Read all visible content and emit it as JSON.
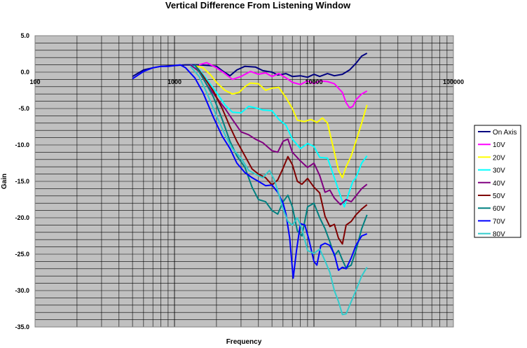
{
  "chart_data": {
    "type": "line",
    "title": "Vertical Difference From Listening Window",
    "xlabel": "Frequency",
    "ylabel": "Gain",
    "x_scale": "log",
    "xlim": [
      100,
      100000
    ],
    "ylim": [
      -35,
      5
    ],
    "x_ticks": [
      "100",
      "1000",
      "10000",
      "100000"
    ],
    "y_ticks": [
      "5.0",
      "0.0",
      "-5.0",
      "-10.0",
      "-15.0",
      "-20.0",
      "-25.0",
      "-30.0",
      "-35.0"
    ],
    "grid": true,
    "plot_background": "#C0C0C0",
    "legend_position": "right",
    "series": [
      {
        "name": "On Axis",
        "color": "#000080",
        "points": [
          [
            500,
            -0.6
          ],
          [
            600,
            0.3
          ],
          [
            700,
            0.6
          ],
          [
            800,
            0.8
          ],
          [
            1000,
            0.9
          ],
          [
            1200,
            1.0
          ],
          [
            1500,
            1.0
          ],
          [
            1800,
            0.9
          ],
          [
            2000,
            0.8
          ],
          [
            2200,
            0.2
          ],
          [
            2500,
            -0.5
          ],
          [
            2800,
            0.3
          ],
          [
            3200,
            0.8
          ],
          [
            3800,
            0.7
          ],
          [
            4300,
            0.2
          ],
          [
            5000,
            0.0
          ],
          [
            5500,
            -0.4
          ],
          [
            6300,
            -0.2
          ],
          [
            7000,
            -0.6
          ],
          [
            8000,
            -0.5
          ],
          [
            9000,
            -0.7
          ],
          [
            10000,
            -0.3
          ],
          [
            11000,
            -0.6
          ],
          [
            12500,
            -0.2
          ],
          [
            14000,
            -0.5
          ],
          [
            16000,
            -0.3
          ],
          [
            18000,
            0.3
          ],
          [
            20000,
            1.2
          ],
          [
            22000,
            2.2
          ],
          [
            24000,
            2.6
          ]
        ]
      },
      {
        "name": "10V",
        "color": "#FF00FF",
        "points": [
          [
            1500,
            1.0
          ],
          [
            1700,
            1.3
          ],
          [
            2000,
            0.6
          ],
          [
            2300,
            -0.2
          ],
          [
            2600,
            -1.0
          ],
          [
            3000,
            -0.6
          ],
          [
            3500,
            0.1
          ],
          [
            4000,
            -0.3
          ],
          [
            4500,
            -0.1
          ],
          [
            5000,
            -0.6
          ],
          [
            5600,
            -0.2
          ],
          [
            6300,
            -0.8
          ],
          [
            7000,
            -1.4
          ],
          [
            8000,
            -1.7
          ],
          [
            9000,
            -1.2
          ],
          [
            10000,
            -1.6
          ],
          [
            11000,
            -1.2
          ],
          [
            12500,
            -1.3
          ],
          [
            14000,
            -1.6
          ],
          [
            16000,
            -2.8
          ],
          [
            17000,
            -4.2
          ],
          [
            18000,
            -4.9
          ],
          [
            19000,
            -4.7
          ],
          [
            20000,
            -3.8
          ],
          [
            22000,
            -3.0
          ],
          [
            24000,
            -2.6
          ]
        ]
      },
      {
        "name": "20V",
        "color": "#FFFF00",
        "points": [
          [
            1400,
            0.9
          ],
          [
            1600,
            0.6
          ],
          [
            1800,
            -0.3
          ],
          [
            2000,
            -1.4
          ],
          [
            2300,
            -2.5
          ],
          [
            2600,
            -3.0
          ],
          [
            2900,
            -2.8
          ],
          [
            3200,
            -2.0
          ],
          [
            3500,
            -1.5
          ],
          [
            4000,
            -1.6
          ],
          [
            4500,
            -2.5
          ],
          [
            5000,
            -2.2
          ],
          [
            5600,
            -2.1
          ],
          [
            6300,
            -3.5
          ],
          [
            7000,
            -5.0
          ],
          [
            7600,
            -6.6
          ],
          [
            8500,
            -6.8
          ],
          [
            9500,
            -6.5
          ],
          [
            10500,
            -6.9
          ],
          [
            11500,
            -6.3
          ],
          [
            12500,
            -7.0
          ],
          [
            14000,
            -11.0
          ],
          [
            15000,
            -13.5
          ],
          [
            16000,
            -14.5
          ],
          [
            17000,
            -13.0
          ],
          [
            18500,
            -11.5
          ],
          [
            20000,
            -9.5
          ],
          [
            22000,
            -7.0
          ],
          [
            24000,
            -4.5
          ]
        ]
      },
      {
        "name": "30V",
        "color": "#00FFFF",
        "points": [
          [
            1300,
            1.0
          ],
          [
            1500,
            0.4
          ],
          [
            1700,
            -1.0
          ],
          [
            2000,
            -2.8
          ],
          [
            2300,
            -4.5
          ],
          [
            2600,
            -5.5
          ],
          [
            3000,
            -5.6
          ],
          [
            3400,
            -4.7
          ],
          [
            3800,
            -4.9
          ],
          [
            4300,
            -5.2
          ],
          [
            5000,
            -5.3
          ],
          [
            5600,
            -6.5
          ],
          [
            6300,
            -7.3
          ],
          [
            7000,
            -9.2
          ],
          [
            8000,
            -10.5
          ],
          [
            9000,
            -9.8
          ],
          [
            10000,
            -10.2
          ],
          [
            11000,
            -11.7
          ],
          [
            12500,
            -11.8
          ],
          [
            14000,
            -14.5
          ],
          [
            15500,
            -17.0
          ],
          [
            16500,
            -18.5
          ],
          [
            17500,
            -17.0
          ],
          [
            19000,
            -15.0
          ],
          [
            20000,
            -14.5
          ],
          [
            22000,
            -12.5
          ],
          [
            24000,
            -11.5
          ]
        ]
      },
      {
        "name": "40V",
        "color": "#800080",
        "points": [
          [
            1300,
            1.0
          ],
          [
            1500,
            0.1
          ],
          [
            1700,
            -1.7
          ],
          [
            2000,
            -3.5
          ],
          [
            2300,
            -5.0
          ],
          [
            2600,
            -6.5
          ],
          [
            3000,
            -8.2
          ],
          [
            3400,
            -8.6
          ],
          [
            3800,
            -9.2
          ],
          [
            4300,
            -9.7
          ],
          [
            5000,
            -10.8
          ],
          [
            5500,
            -11.0
          ],
          [
            6000,
            -9.5
          ],
          [
            6500,
            -9.2
          ],
          [
            7000,
            -11.0
          ],
          [
            8000,
            -12.2
          ],
          [
            9000,
            -13.1
          ],
          [
            10000,
            -12.5
          ],
          [
            11000,
            -14.2
          ],
          [
            12000,
            -16.5
          ],
          [
            13000,
            -16.2
          ],
          [
            14000,
            -17.3
          ],
          [
            15500,
            -18.2
          ],
          [
            17000,
            -17.5
          ],
          [
            18500,
            -17.8
          ],
          [
            20000,
            -17.0
          ],
          [
            22000,
            -16.0
          ],
          [
            24000,
            -15.4
          ]
        ]
      },
      {
        "name": "50V",
        "color": "#800000",
        "points": [
          [
            1400,
            1.0
          ],
          [
            1600,
            -0.5
          ],
          [
            1900,
            -2.6
          ],
          [
            2200,
            -5.0
          ],
          [
            2500,
            -7.5
          ],
          [
            2800,
            -9.5
          ],
          [
            3200,
            -11.5
          ],
          [
            3600,
            -13.3
          ],
          [
            4000,
            -14.0
          ],
          [
            4500,
            -14.5
          ],
          [
            5000,
            -15.5
          ],
          [
            5500,
            -14.8
          ],
          [
            6000,
            -13.2
          ],
          [
            6500,
            -11.6
          ],
          [
            7000,
            -12.7
          ],
          [
            7600,
            -15.0
          ],
          [
            8200,
            -15.4
          ],
          [
            9000,
            -14.6
          ],
          [
            10000,
            -15.8
          ],
          [
            11000,
            -16.6
          ],
          [
            12000,
            -19.8
          ],
          [
            13000,
            -21.2
          ],
          [
            14000,
            -20.9
          ],
          [
            15000,
            -22.8
          ],
          [
            16000,
            -23.6
          ],
          [
            17000,
            -21.0
          ],
          [
            18500,
            -20.5
          ],
          [
            20000,
            -19.6
          ],
          [
            22000,
            -18.8
          ],
          [
            24000,
            -18.2
          ]
        ]
      },
      {
        "name": "60V",
        "color": "#008080",
        "points": [
          [
            1400,
            1.0
          ],
          [
            1600,
            -0.8
          ],
          [
            1900,
            -3.4
          ],
          [
            2200,
            -6.5
          ],
          [
            2500,
            -9.5
          ],
          [
            2800,
            -11.5
          ],
          [
            3200,
            -13.1
          ],
          [
            3600,
            -15.8
          ],
          [
            4000,
            -17.5
          ],
          [
            4500,
            -17.8
          ],
          [
            5000,
            -19.0
          ],
          [
            5500,
            -19.5
          ],
          [
            6000,
            -17.8
          ],
          [
            6500,
            -16.9
          ],
          [
            7000,
            -18.5
          ],
          [
            7600,
            -21.8
          ],
          [
            8200,
            -22.5
          ],
          [
            9000,
            -18.5
          ],
          [
            10000,
            -18.0
          ],
          [
            11000,
            -20.0
          ],
          [
            12000,
            -21.5
          ],
          [
            13000,
            -23.3
          ],
          [
            14000,
            -25.2
          ],
          [
            15000,
            -24.5
          ],
          [
            16000,
            -25.8
          ],
          [
            17000,
            -26.9
          ],
          [
            18500,
            -26.5
          ],
          [
            20000,
            -24.5
          ],
          [
            22000,
            -21.5
          ],
          [
            24000,
            -19.6
          ]
        ]
      },
      {
        "name": "70V",
        "color": "#0000FF",
        "points": [
          [
            500,
            -0.9
          ],
          [
            600,
            0.1
          ],
          [
            700,
            0.6
          ],
          [
            800,
            0.8
          ],
          [
            900,
            0.8
          ],
          [
            1000,
            0.9
          ],
          [
            1100,
            1.0
          ],
          [
            1200,
            0.6
          ],
          [
            1400,
            -0.8
          ],
          [
            1600,
            -2.8
          ],
          [
            1900,
            -6.2
          ],
          [
            2200,
            -8.8
          ],
          [
            2500,
            -10.5
          ],
          [
            2800,
            -12.5
          ],
          [
            3200,
            -13.8
          ],
          [
            3600,
            -14.5
          ],
          [
            4000,
            -15.0
          ],
          [
            4500,
            -15.6
          ],
          [
            5000,
            -15.5
          ],
          [
            5500,
            -16.5
          ],
          [
            6000,
            -18.0
          ],
          [
            6300,
            -19.5
          ],
          [
            6700,
            -22.8
          ],
          [
            7100,
            -28.3
          ],
          [
            7500,
            -24.5
          ],
          [
            8000,
            -20.8
          ],
          [
            8600,
            -21.0
          ],
          [
            9200,
            -23.0
          ],
          [
            10000,
            -26.0
          ],
          [
            10500,
            -26.5
          ],
          [
            11200,
            -23.8
          ],
          [
            12000,
            -23.5
          ],
          [
            13000,
            -23.8
          ],
          [
            14000,
            -25.0
          ],
          [
            15000,
            -27.2
          ],
          [
            16000,
            -26.8
          ],
          [
            17000,
            -27.0
          ],
          [
            18500,
            -25.5
          ],
          [
            20000,
            -23.8
          ],
          [
            22000,
            -22.5
          ],
          [
            24000,
            -22.2
          ]
        ]
      },
      {
        "name": "80V",
        "color": "#33CCCC",
        "points": [
          [
            1300,
            0.8
          ],
          [
            1500,
            -0.6
          ],
          [
            1700,
            -2.8
          ],
          [
            2000,
            -6.0
          ],
          [
            2300,
            -8.6
          ],
          [
            2600,
            -10.5
          ],
          [
            3000,
            -11.8
          ],
          [
            3400,
            -13.5
          ],
          [
            3800,
            -14.0
          ],
          [
            4300,
            -14.5
          ],
          [
            4800,
            -13.5
          ],
          [
            5200,
            -14.8
          ],
          [
            5600,
            -16.8
          ],
          [
            6000,
            -18.8
          ],
          [
            6500,
            -20.5
          ],
          [
            7000,
            -21.0
          ],
          [
            7600,
            -20.0
          ],
          [
            8200,
            -21.5
          ],
          [
            9000,
            -24.5
          ],
          [
            10000,
            -24.9
          ],
          [
            11000,
            -24.3
          ],
          [
            12000,
            -25.9
          ],
          [
            13000,
            -27.5
          ],
          [
            14000,
            -30.0
          ],
          [
            15000,
            -31.5
          ],
          [
            16000,
            -33.3
          ],
          [
            17000,
            -33.2
          ],
          [
            18500,
            -31.5
          ],
          [
            20000,
            -30.0
          ],
          [
            22000,
            -28.0
          ],
          [
            24000,
            -26.8
          ]
        ]
      }
    ]
  }
}
